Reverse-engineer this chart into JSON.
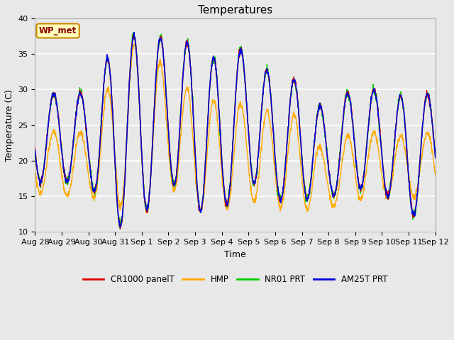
{
  "title": "Temperatures",
  "xlabel": "Time",
  "ylabel": "Temperature (C)",
  "ylim": [
    10,
    40
  ],
  "yticks": [
    10,
    15,
    20,
    25,
    30,
    35,
    40
  ],
  "background_color": "#e8e8e8",
  "series_colors": {
    "CR1000 panelT": "#dd0000",
    "HMP": "#ffaa00",
    "NR01 PRT": "#00cc00",
    "AM25T PRT": "#0000dd"
  },
  "legend_label": "WP_met",
  "legend_box_facecolor": "#ffffbb",
  "legend_box_edgecolor": "#cc8800",
  "xtick_labels": [
    "Aug 28",
    "Aug 29",
    "Aug 30",
    "Aug 31",
    "Sep 1",
    "Sep 2",
    "Sep 3",
    "Sep 4",
    "Sep 5",
    "Sep 6",
    "Sep 7",
    "Sep 8",
    "Sep 9",
    "Sep 10",
    "Sep 11",
    "Sep 12"
  ],
  "title_fontsize": 11,
  "axis_fontsize": 9,
  "tick_fontsize": 8
}
